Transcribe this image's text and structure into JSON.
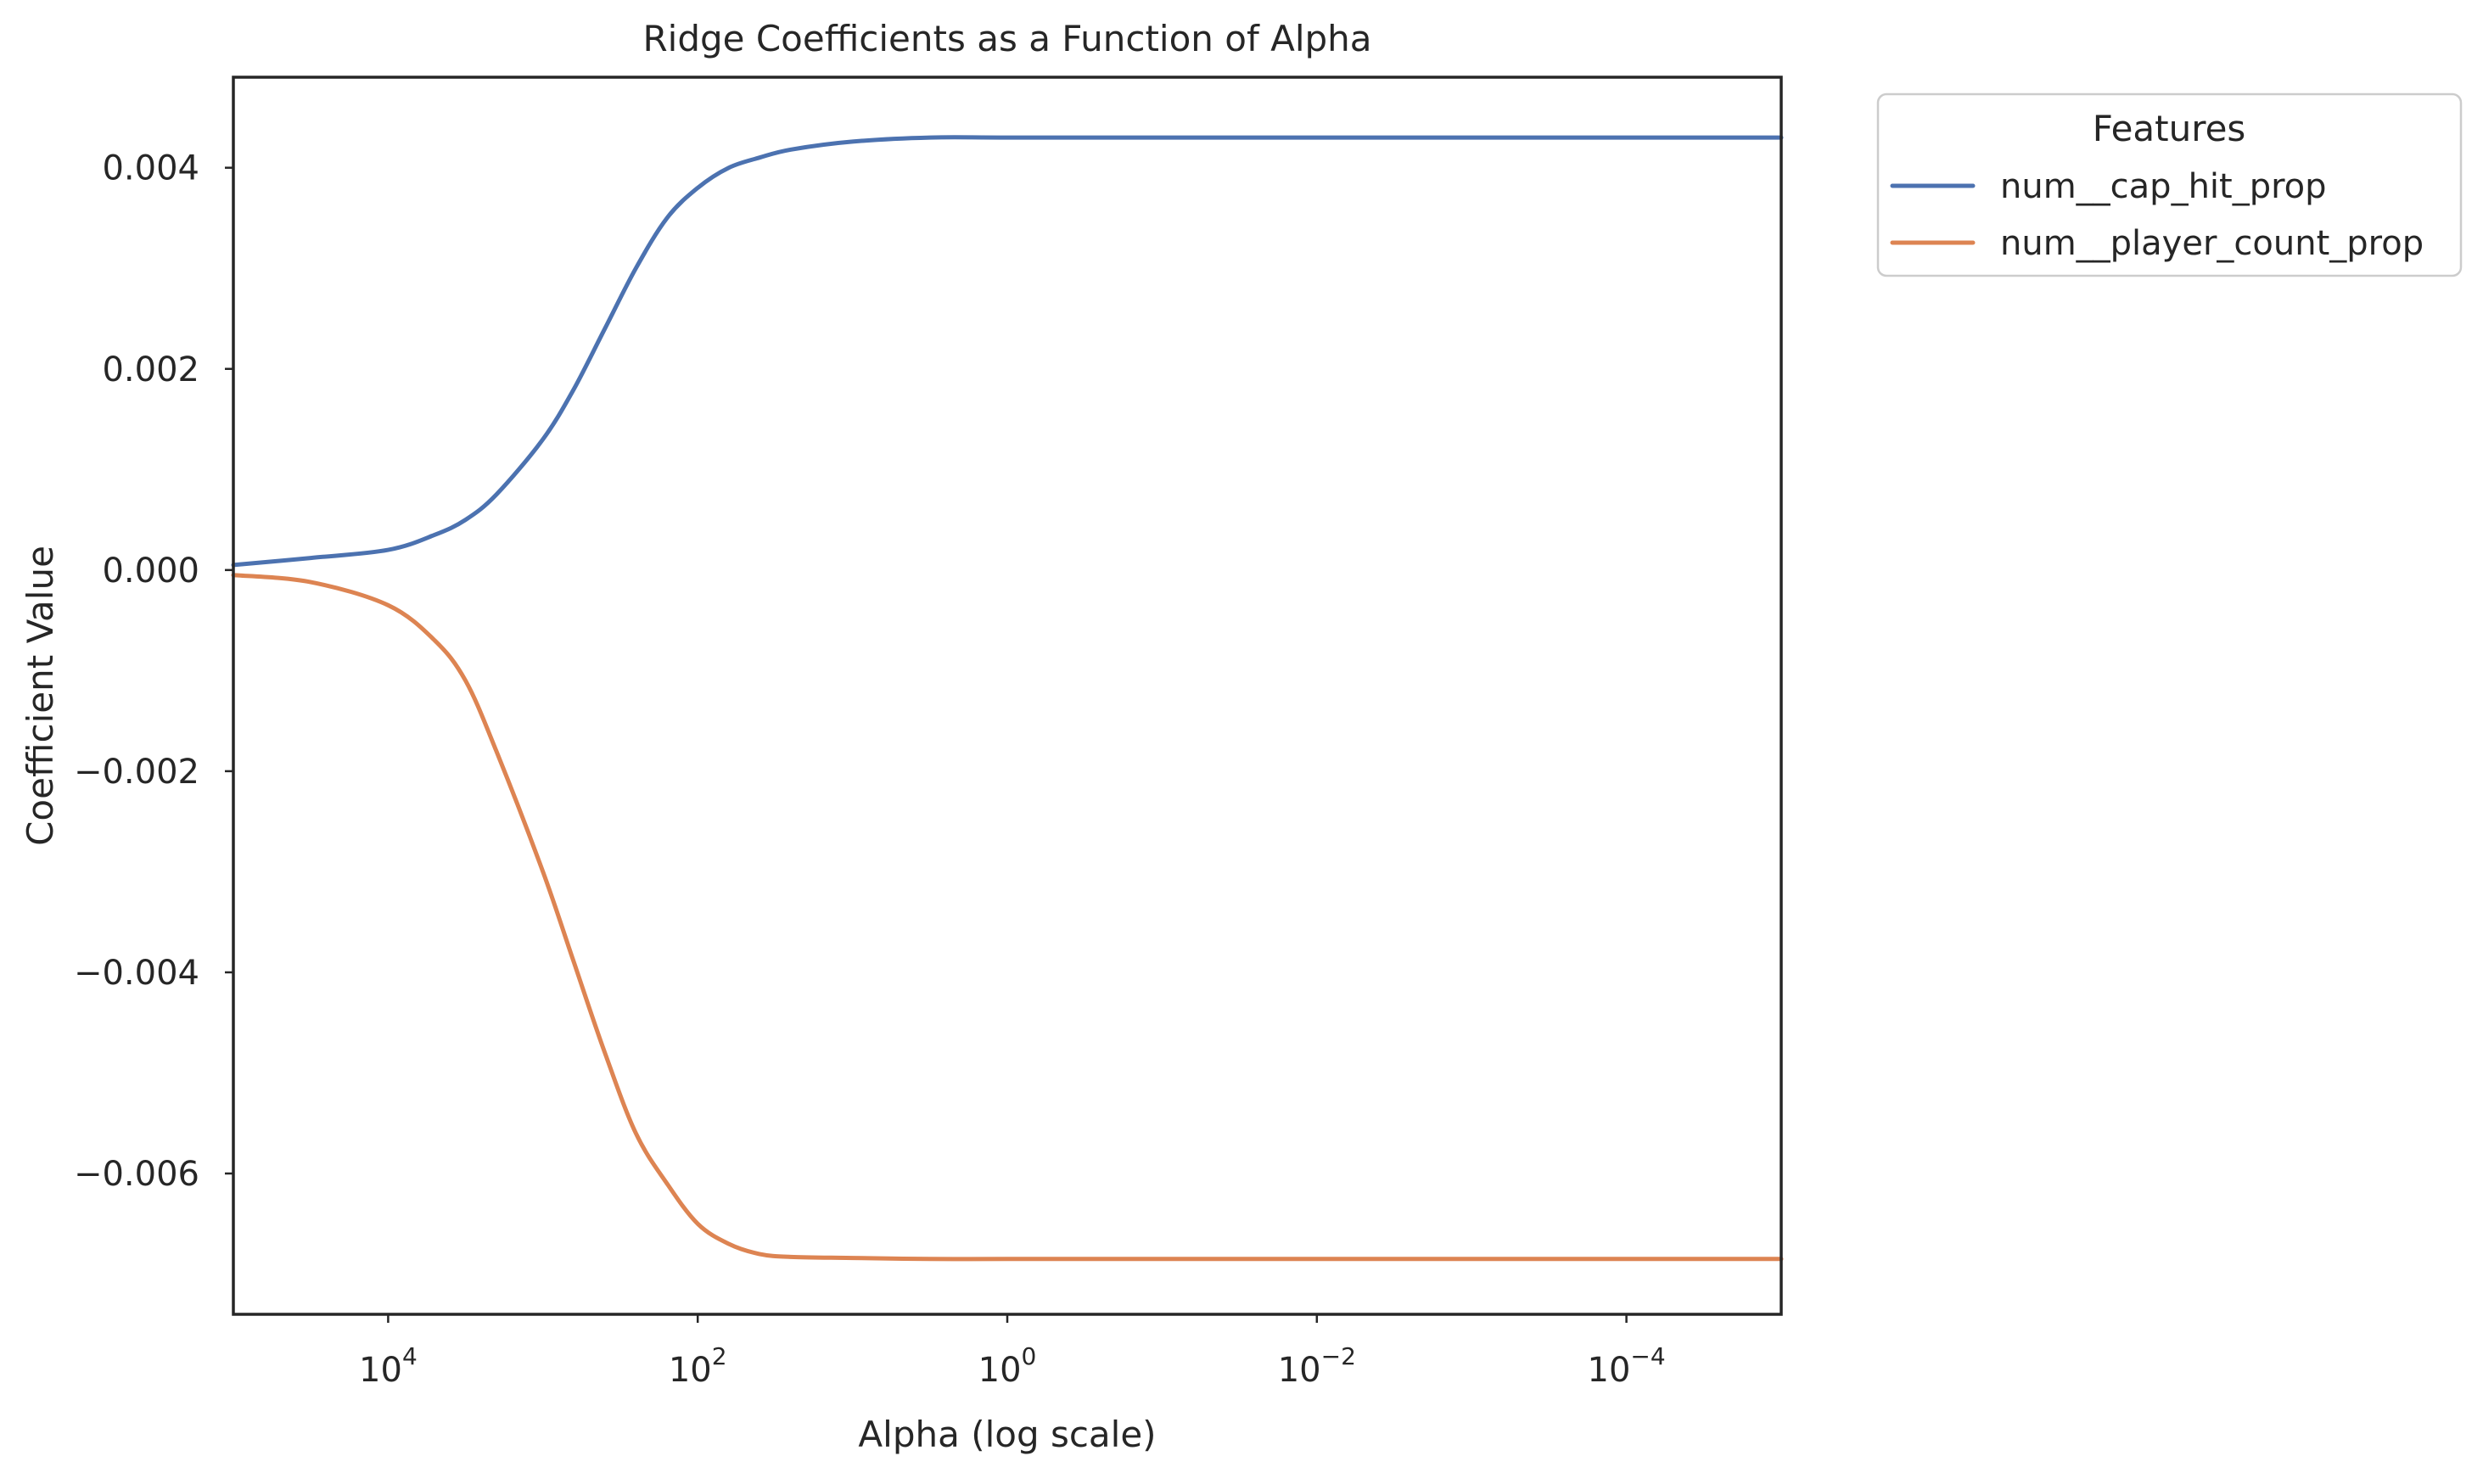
{
  "chart_data": {
    "type": "line",
    "title": "Ridge Coefficients as a Function of Alpha",
    "xlabel": "Alpha (log scale)",
    "ylabel": "Coefficient Value",
    "x_scale": "log",
    "x_axis_direction": "decreasing",
    "xlim": [
      100000,
      1e-05
    ],
    "ylim": [
      -0.0074,
      0.0049
    ],
    "x_ticks": [
      {
        "value": 10000,
        "base": "10",
        "exp": "4"
      },
      {
        "value": 100,
        "base": "10",
        "exp": "2"
      },
      {
        "value": 1,
        "base": "10",
        "exp": "0"
      },
      {
        "value": 0.01,
        "base": "10",
        "exp": "−2"
      },
      {
        "value": 0.0001,
        "base": "10",
        "exp": "−4"
      }
    ],
    "y_ticks": [
      {
        "value": 0.004,
        "label": "0.004"
      },
      {
        "value": 0.002,
        "label": "0.002"
      },
      {
        "value": 0.0,
        "label": "0.000"
      },
      {
        "value": -0.002,
        "label": "−0.002"
      },
      {
        "value": -0.004,
        "label": "−0.004"
      },
      {
        "value": -0.006,
        "label": "−0.006"
      }
    ],
    "grid": false,
    "legend": {
      "title": "Features",
      "position": "outside-top-right"
    },
    "series": [
      {
        "name": "num__cap_hit_prop",
        "color": "#4c72b0",
        "points": [
          [
            100000,
            5e-05
          ],
          [
            31623,
            0.00012
          ],
          [
            10000,
            0.0002
          ],
          [
            5000,
            0.00035
          ],
          [
            3162,
            0.0005
          ],
          [
            2000,
            0.00075
          ],
          [
            1000,
            0.0013
          ],
          [
            631,
            0.0018
          ],
          [
            398,
            0.0024
          ],
          [
            251,
            0.003
          ],
          [
            158,
            0.0035
          ],
          [
            100,
            0.0038
          ],
          [
            63,
            0.004
          ],
          [
            40,
            0.0041
          ],
          [
            25,
            0.00418
          ],
          [
            10,
            0.00426
          ],
          [
            3.16,
            0.0043
          ],
          [
            1,
            0.0043
          ],
          [
            0.1,
            0.0043
          ],
          [
            0.01,
            0.0043
          ],
          [
            0.001,
            0.0043
          ],
          [
            0.0001,
            0.0043
          ],
          [
            1e-05,
            0.0043
          ]
        ]
      },
      {
        "name": "num__player_count_prop",
        "color": "#dd8452",
        "points": [
          [
            100000,
            -5e-05
          ],
          [
            31623,
            -0.00012
          ],
          [
            10000,
            -0.00035
          ],
          [
            5000,
            -0.0007
          ],
          [
            3162,
            -0.0011
          ],
          [
            2000,
            -0.0018
          ],
          [
            1000,
            -0.003
          ],
          [
            631,
            -0.0039
          ],
          [
            398,
            -0.0048
          ],
          [
            251,
            -0.0056
          ],
          [
            158,
            -0.0061
          ],
          [
            100,
            -0.0065
          ],
          [
            63,
            -0.0067
          ],
          [
            40,
            -0.0068
          ],
          [
            25,
            -0.00683
          ],
          [
            10,
            -0.00684
          ],
          [
            3.16,
            -0.00685
          ],
          [
            1,
            -0.00685
          ],
          [
            0.1,
            -0.00685
          ],
          [
            0.01,
            -0.00685
          ],
          [
            0.001,
            -0.00685
          ],
          [
            0.0001,
            -0.00685
          ],
          [
            1e-05,
            -0.00685
          ]
        ]
      }
    ]
  }
}
